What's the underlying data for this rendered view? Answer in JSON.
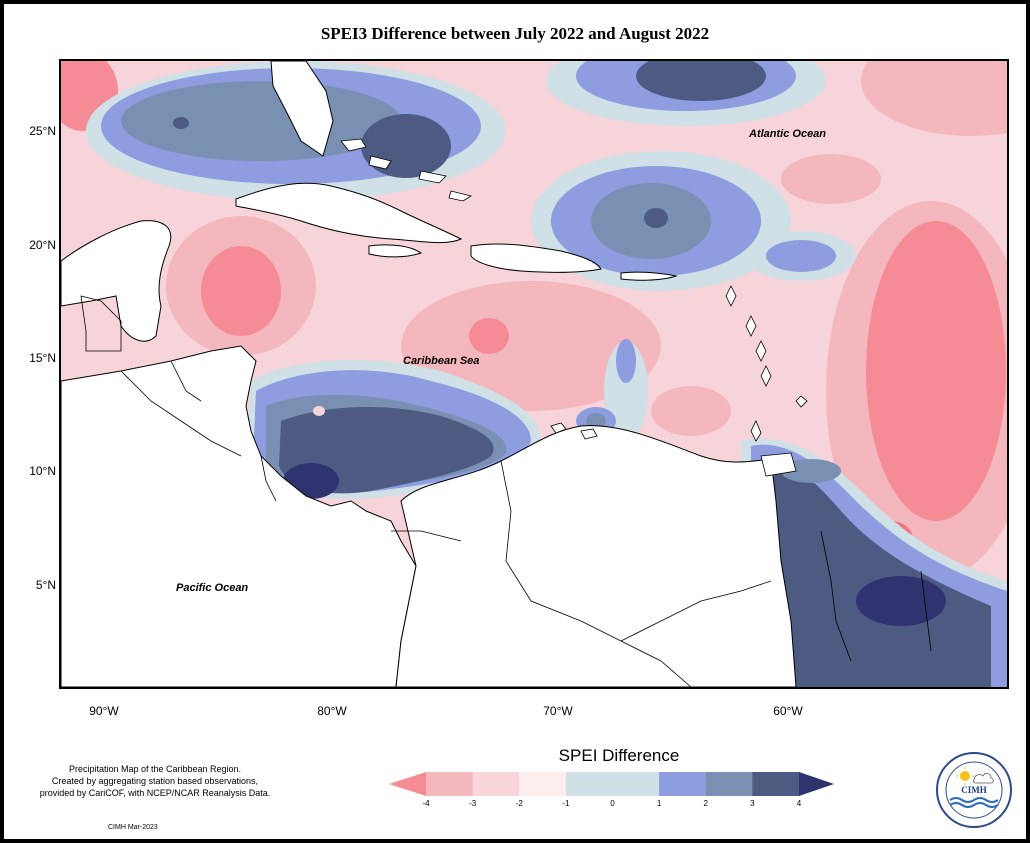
{
  "title": "SPEI3 Difference between July 2022 and August 2022",
  "axes": {
    "lat_labels": [
      "25°N",
      "20°N",
      "15°N",
      "10°N",
      "5°N"
    ],
    "lon_labels": [
      "90°W",
      "80°W",
      "70°W",
      "60°W"
    ]
  },
  "map_labels": {
    "atlantic": "Atlantic Ocean",
    "caribbean": "Caribbean Sea",
    "pacific": "Pacific Ocean"
  },
  "legend": {
    "title": "SPEI Difference",
    "ticks": [
      "-4",
      "-3",
      "-2",
      "-1",
      "0",
      "1",
      "2",
      "3",
      "4"
    ],
    "colors": [
      "#f58b95",
      "#f4b7bd",
      "#f9d5da",
      "#fdeef0",
      "#cfe0e6",
      "#8e9ce0",
      "#7a90b2",
      "#4d5a82",
      "#2f3370"
    ]
  },
  "credit": {
    "line1": "Precipitation Map of the Caribbean Region.",
    "line2": "Created by aggregating station based observations,",
    "line3": "provided by CariCOF, with NCEP/NCAR Reanalysis Data.",
    "date": "CIMH Mar-2023"
  },
  "logo": {
    "abbr": "CIMH"
  }
}
